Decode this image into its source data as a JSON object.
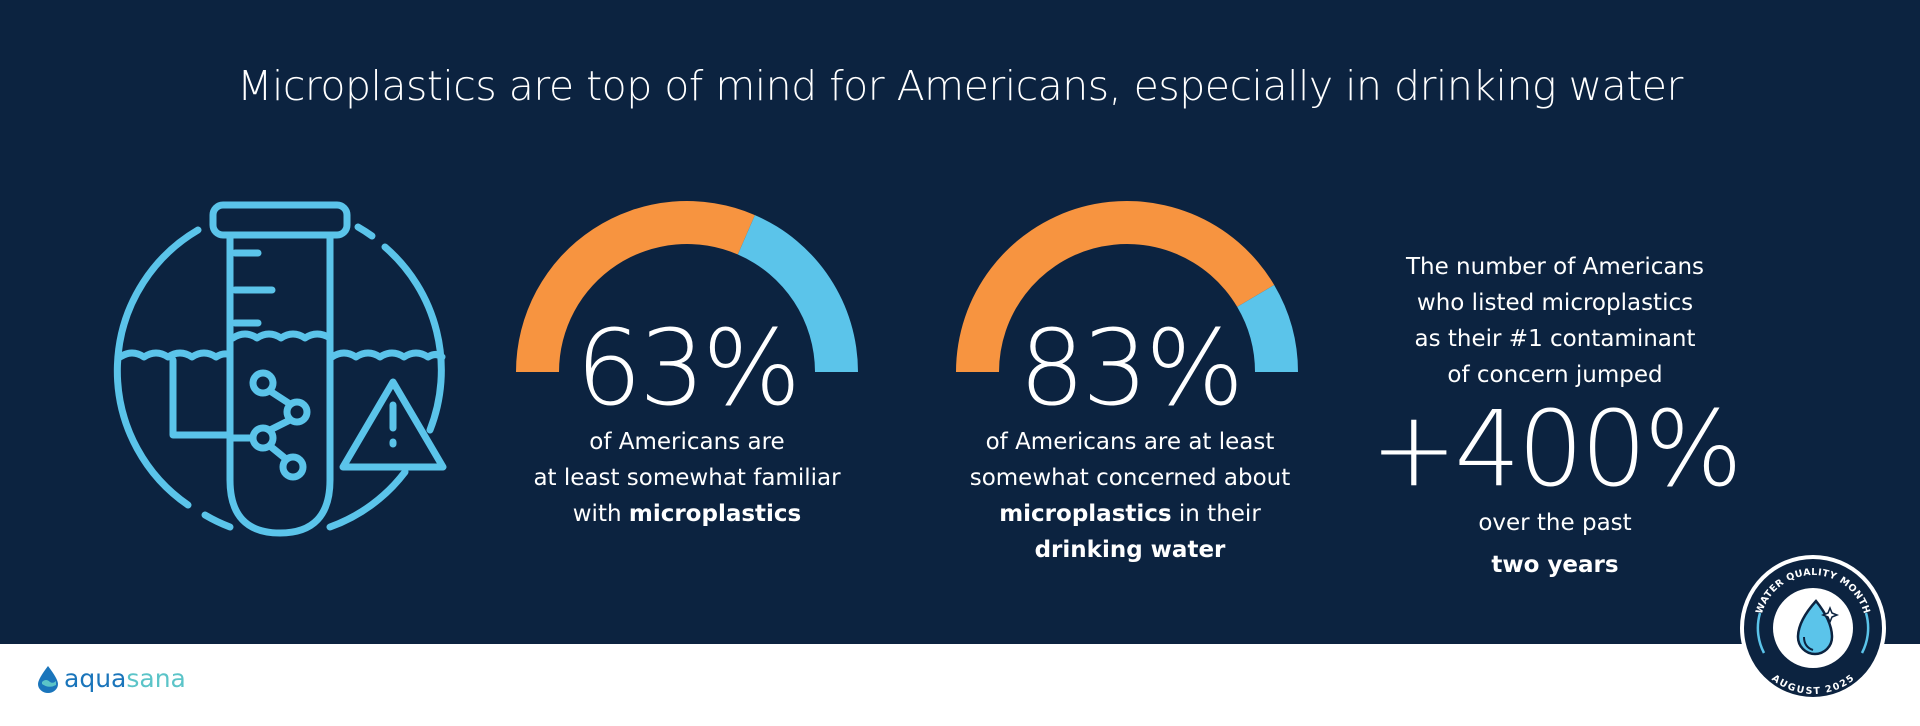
{
  "title": "Microplastics are top of mind for Americans, especially in drinking water",
  "colors": {
    "background": "#0c2340",
    "orange": "#f79440",
    "blue": "#5bc4ea"
  },
  "stats": [
    {
      "value_label": "63%",
      "percent": 63,
      "line1": "of Americans are",
      "line2": "at least somewhat familiar",
      "line3_pre": "with ",
      "line3_bold": "microplastics"
    },
    {
      "value_label": "83%",
      "percent": 83,
      "line1": "of Americans are at least",
      "line2": "somewhat concerned about",
      "line3_bold": "microplastics",
      "line3_post": " in their",
      "line4_bold": "drinking water"
    }
  ],
  "jump": {
    "lines": [
      "The number of Americans",
      "who listed microplastics",
      "as their #1 contaminant",
      "of concern jumped"
    ],
    "value_label": "+400%",
    "after": "over the past",
    "after_bold": "two years"
  },
  "badge": {
    "top_text": "WATER QUALITY MONTH",
    "bottom_text": "AUGUST 2025",
    "icon": "water-drop-sparkle-icon"
  },
  "logo": {
    "part1": "aqua",
    "part2": "sana",
    "icon": "water-drop-wave-icon"
  },
  "hero_icon": "test-tube-water-warning-icon"
}
